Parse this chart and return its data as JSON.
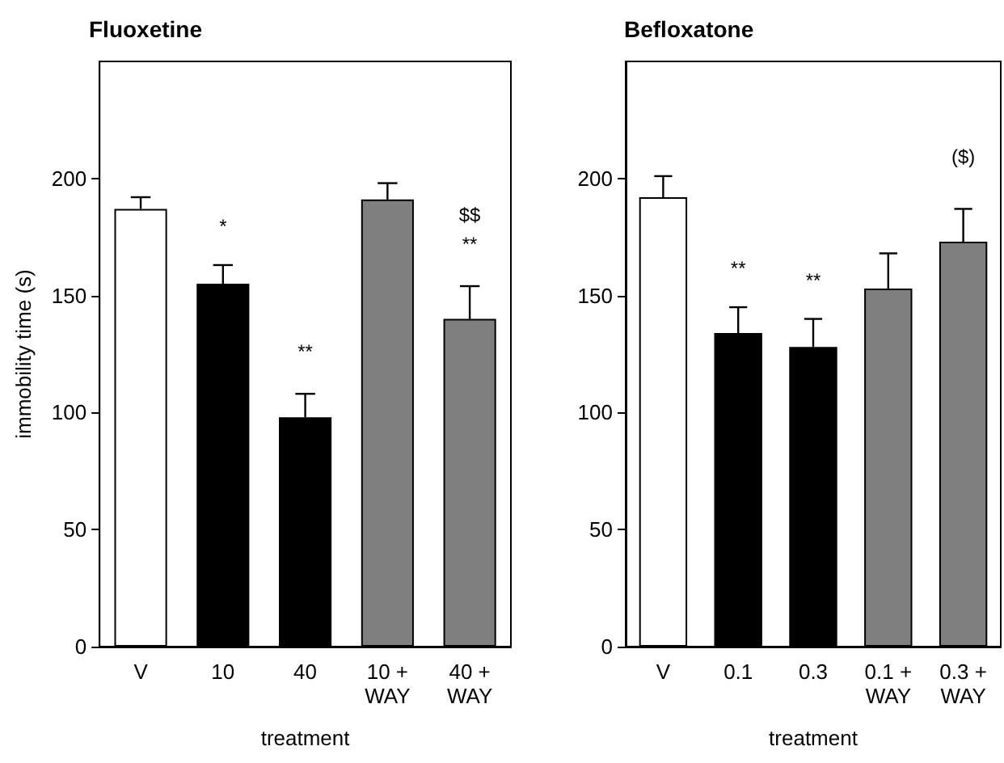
{
  "chart_data": [
    {
      "type": "bar",
      "title": "Fluoxetine",
      "xlabel": "treatment",
      "ylabel": "immobility time (s)",
      "categories": [
        "V",
        "10",
        "40",
        "10 + WAY",
        "40 + WAY"
      ],
      "values": [
        187,
        155,
        98,
        191,
        140
      ],
      "errors": [
        5,
        8,
        10,
        7,
        14
      ],
      "colors": [
        "#ffffff",
        "#000000",
        "#000000",
        "#7f7f7f",
        "#7f7f7f"
      ],
      "ylim": [
        0,
        250
      ],
      "yticks": [
        0,
        50,
        100,
        150,
        200
      ],
      "grid": false,
      "annotations": [
        "*",
        "**",
        "$$",
        "**"
      ]
    },
    {
      "type": "bar",
      "title": "Befloxatone",
      "xlabel": "treatment",
      "categories": [
        "V",
        "0.1",
        "0.3",
        "0.1 + WAY",
        "0.3 + WAY"
      ],
      "values": [
        192,
        134,
        128,
        153,
        173
      ],
      "errors": [
        9,
        11,
        12,
        15,
        14
      ],
      "colors": [
        "#ffffff",
        "#000000",
        "#000000",
        "#7f7f7f",
        "#7f7f7f"
      ],
      "ylim": [
        0,
        250
      ],
      "yticks": [
        0,
        50,
        100,
        150,
        200
      ],
      "grid": false,
      "annotations": [
        "**",
        "**",
        "($)"
      ]
    }
  ]
}
